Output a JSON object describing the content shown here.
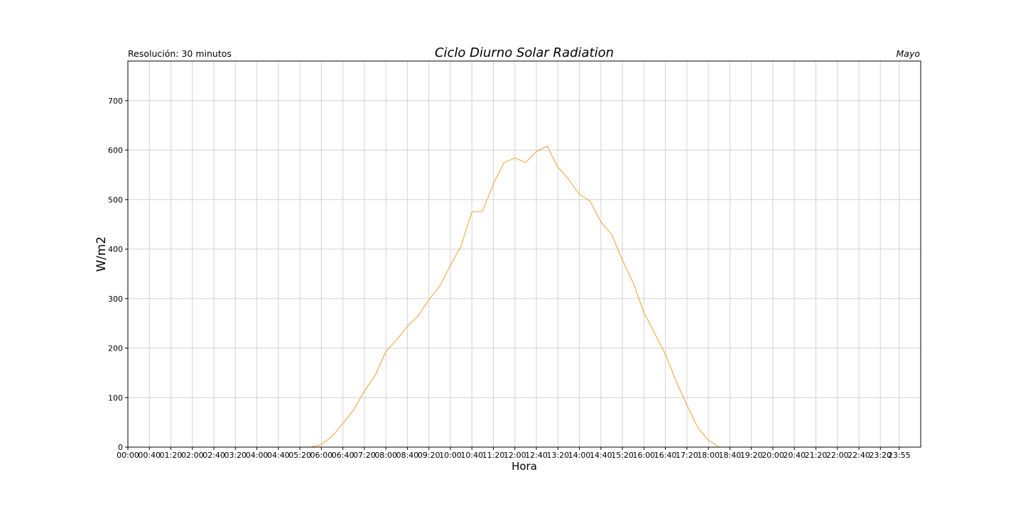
{
  "chart_data": {
    "type": "line",
    "title": "Ciclo Diurno Solar Radiation",
    "subtitle_left": "Resolución: 30 minutos",
    "subtitle_right": "Mayo",
    "xlabel": "Hora",
    "ylabel": "W/m2",
    "ylim": [
      0,
      780
    ],
    "yticks": [
      0,
      100,
      200,
      300,
      400,
      500,
      600,
      700
    ],
    "xlim_minutes": [
      0,
      1475
    ],
    "xticks": [
      "00:00",
      "00:40",
      "01:20",
      "02:00",
      "02:40",
      "03:20",
      "04:00",
      "04:40",
      "05:20",
      "06:00",
      "06:40",
      "07:20",
      "08:00",
      "08:40",
      "09:20",
      "10:00",
      "10:40",
      "11:20",
      "12:00",
      "12:40",
      "13:20",
      "14:00",
      "14:40",
      "15:20",
      "16:00",
      "16:40",
      "17:20",
      "18:00",
      "18:40",
      "19:20",
      "20:00",
      "20:40",
      "21:20",
      "22:00",
      "22:40",
      "23:20",
      "23:55"
    ],
    "grid": true,
    "colors": {
      "line": "#f0a030",
      "grid": "#d3d3d3"
    },
    "series": [
      {
        "x": [
          "00:00",
          "00:20",
          "00:40",
          "01:00",
          "01:20",
          "01:40",
          "02:00",
          "02:20",
          "02:40",
          "03:00",
          "03:20",
          "03:40",
          "04:00",
          "04:20",
          "04:40",
          "05:00",
          "05:20",
          "05:40",
          "06:00",
          "06:20",
          "06:40",
          "07:00",
          "07:20",
          "07:40",
          "08:00",
          "08:20",
          "08:40",
          "09:00",
          "09:20",
          "09:40",
          "10:00",
          "10:20",
          "10:40",
          "11:00",
          "11:20",
          "11:40",
          "12:00",
          "12:20",
          "12:40",
          "13:00",
          "13:20",
          "13:40",
          "14:00",
          "14:20",
          "14:40",
          "15:00",
          "15:20",
          "15:40",
          "16:00",
          "16:20",
          "16:40",
          "17:00",
          "17:20",
          "17:40",
          "18:00",
          "18:20",
          "18:40",
          "19:00",
          "19:20",
          "19:40",
          "20:00",
          "20:20",
          "20:40",
          "21:00",
          "21:20",
          "21:40",
          "22:00",
          "22:20",
          "22:40",
          "23:00",
          "23:20",
          "23:40",
          "23:55"
        ],
        "values": [
          0,
          0,
          0,
          0,
          0,
          0,
          0,
          0,
          0,
          0,
          0,
          0,
          0,
          0,
          0,
          0,
          0,
          0,
          5,
          22,
          48,
          75,
          113,
          145,
          193,
          217,
          244,
          265,
          298,
          325,
          367,
          407,
          475,
          477,
          532,
          575,
          584,
          575,
          597,
          608,
          566,
          541,
          511,
          497,
          455,
          430,
          378,
          332,
          272,
          230,
          188,
          133,
          85,
          40,
          14,
          0,
          0,
          0,
          0,
          0,
          0,
          0,
          0,
          0,
          0,
          0,
          0,
          0,
          0,
          0,
          0,
          0,
          0
        ]
      }
    ]
  }
}
